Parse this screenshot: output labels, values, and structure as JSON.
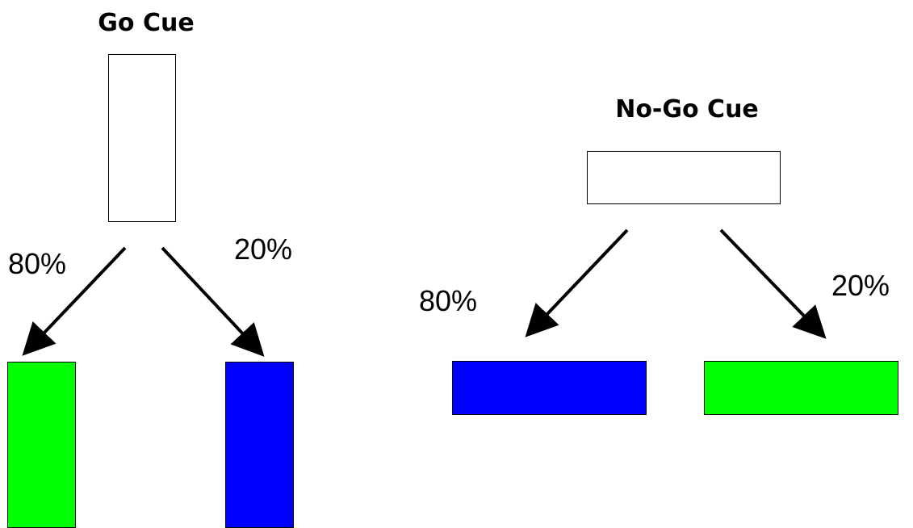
{
  "go": {
    "title": "Go Cue",
    "left_percent": "80%",
    "right_percent": "20%",
    "left_outcome_color": "#00ff00",
    "right_outcome_color": "#0000ff"
  },
  "nogo": {
    "title": "No-Go Cue",
    "left_percent": "80%",
    "right_percent": "20%",
    "left_outcome_color": "#0000ff",
    "right_outcome_color": "#00ff00"
  },
  "colors": {
    "green": "#00ff00",
    "blue": "#0000ff",
    "line": "#000000"
  }
}
